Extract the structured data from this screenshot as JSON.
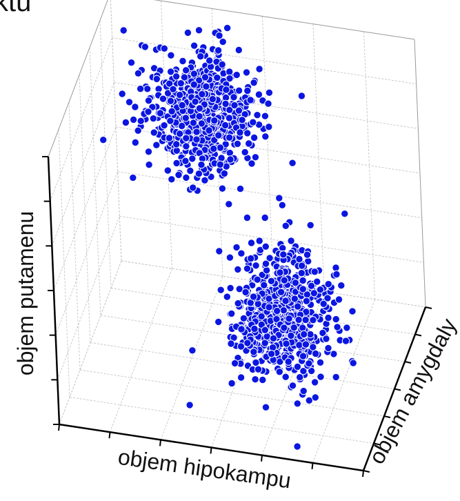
{
  "chart_data": {
    "type": "scatter",
    "title": "ktu",
    "xlabel": "objem hipokampu",
    "ylabel": "objem amygdaly",
    "zlabel": "objem putamenu",
    "grid": true,
    "marker_color": "#0b16e0",
    "marker_edge": "#ffffff",
    "clusters": [
      {
        "center": [
          0.33,
          0.78,
          0.75
        ],
        "spread": [
          0.09,
          0.08,
          0.1
        ],
        "count": 650
      },
      {
        "center": [
          0.7,
          0.25,
          0.38
        ],
        "spread": [
          0.08,
          0.09,
          0.1
        ],
        "count": 700
      }
    ],
    "outliers": [
      [
        0.05,
        0.95,
        0.9
      ],
      [
        0.4,
        0.15,
        0.05
      ],
      [
        0.78,
        0.02,
        0.04
      ],
      [
        0.45,
        0.45,
        0.45
      ]
    ]
  }
}
